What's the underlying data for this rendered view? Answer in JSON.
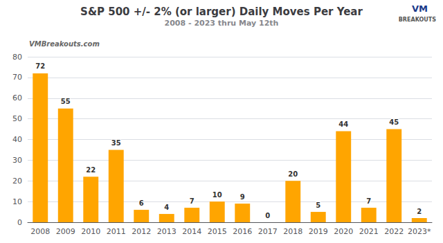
{
  "chart_data": {
    "type": "bar",
    "title": "S&P 500 +/- 2% (or larger) Daily Moves Per Year",
    "subtitle": "2008 - 2023 thru May 12th",
    "annotations": [
      "VMBreakouts.com",
      "VM",
      "BREAKOUTS"
    ],
    "categories": [
      "2008",
      "2009",
      "2010",
      "2011",
      "2012",
      "2013",
      "2014",
      "2015",
      "2016",
      "2017",
      "2018",
      "2019",
      "2020",
      "2021",
      "2022",
      "2023*"
    ],
    "values": [
      72,
      55,
      22,
      35,
      6,
      4,
      7,
      10,
      9,
      0,
      20,
      5,
      44,
      7,
      45,
      2
    ],
    "color": "#FFA500",
    "ylim": [
      0,
      80
    ],
    "yticks": [
      0,
      10,
      20,
      30,
      40,
      50,
      60,
      70,
      80
    ],
    "grid": true,
    "data_labels": true
  }
}
